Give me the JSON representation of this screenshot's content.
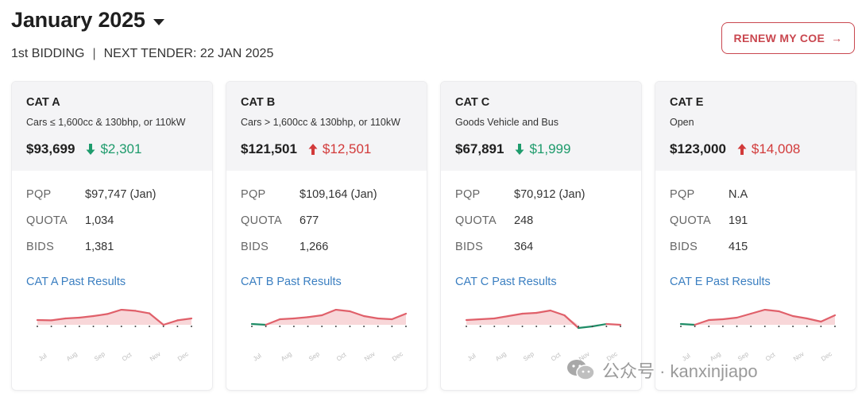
{
  "header": {
    "title": "January 2025",
    "bidding": "1st BIDDING",
    "separator": "|",
    "next_tender": "NEXT TENDER: 22 JAN 2025"
  },
  "renew_button": {
    "label": "RENEW MY COE",
    "icon": "arrow-right-icon"
  },
  "colors": {
    "accent": "#c9474f",
    "down": "#1e9b6c",
    "up": "#d23a3a",
    "link": "#3b7fc1"
  },
  "labels": {
    "pqp": "PQP",
    "quota": "QUOTA",
    "bids": "BIDS"
  },
  "cards": [
    {
      "name": "CAT A",
      "description": "Cars ≤ 1,600cc & 130bhp, or 110kW",
      "premium": "$93,699",
      "change": "$2,301",
      "direction": "down",
      "pqp": "$97,747 (Jan)",
      "quota": "1,034",
      "bids": "1,381",
      "link": "CAT A Past Results",
      "months": [
        "Jul",
        "Aug",
        "Sep",
        "Oct",
        "Nov",
        "Dec"
      ],
      "trend": [
        0.3,
        0.28,
        0.4,
        0.45,
        0.55,
        0.68,
        0.95,
        0.88,
        0.72,
        0.0,
        0.28,
        0.4
      ]
    },
    {
      "name": "CAT B",
      "description": "Cars > 1,600cc & 130bhp, or 110kW",
      "premium": "$121,501",
      "change": "$12,501",
      "direction": "up",
      "pqp": "$109,164 (Jan)",
      "quota": "677",
      "bids": "1,266",
      "link": "CAT B Past Results",
      "months": [
        "Jul",
        "Aug",
        "Sep",
        "Oct",
        "Nov",
        "Dec"
      ],
      "trend": [
        0.05,
        0.0,
        0.35,
        0.4,
        0.48,
        0.6,
        0.95,
        0.85,
        0.55,
        0.4,
        0.35,
        0.7
      ]
    },
    {
      "name": "CAT C",
      "description": "Goods Vehicle and Bus",
      "premium": "$67,891",
      "change": "$1,999",
      "direction": "down",
      "pqp": "$70,912 (Jan)",
      "quota": "248",
      "bids": "364",
      "link": "CAT C Past Results",
      "months": [
        "Jul",
        "Aug",
        "Sep",
        "Oct",
        "Nov",
        "Dec"
      ],
      "trend": [
        0.3,
        0.35,
        0.4,
        0.55,
        0.7,
        0.75,
        0.9,
        0.6,
        -0.2,
        -0.1,
        0.05,
        0.0
      ]
    },
    {
      "name": "CAT E",
      "description": "Open",
      "premium": "$123,000",
      "change": "$14,008",
      "direction": "up",
      "pqp": "N.A",
      "quota": "191",
      "bids": "415",
      "link": "CAT E Past Results",
      "months": [
        "Jul",
        "Aug",
        "Sep",
        "Oct",
        "Nov",
        "Dec"
      ],
      "trend": [
        0.05,
        0.0,
        0.3,
        0.35,
        0.45,
        0.7,
        0.95,
        0.85,
        0.55,
        0.4,
        0.2,
        0.6
      ]
    }
  ],
  "watermark": {
    "text": "公众号 · kanxinjiapo",
    "icon": "wechat-icon"
  }
}
